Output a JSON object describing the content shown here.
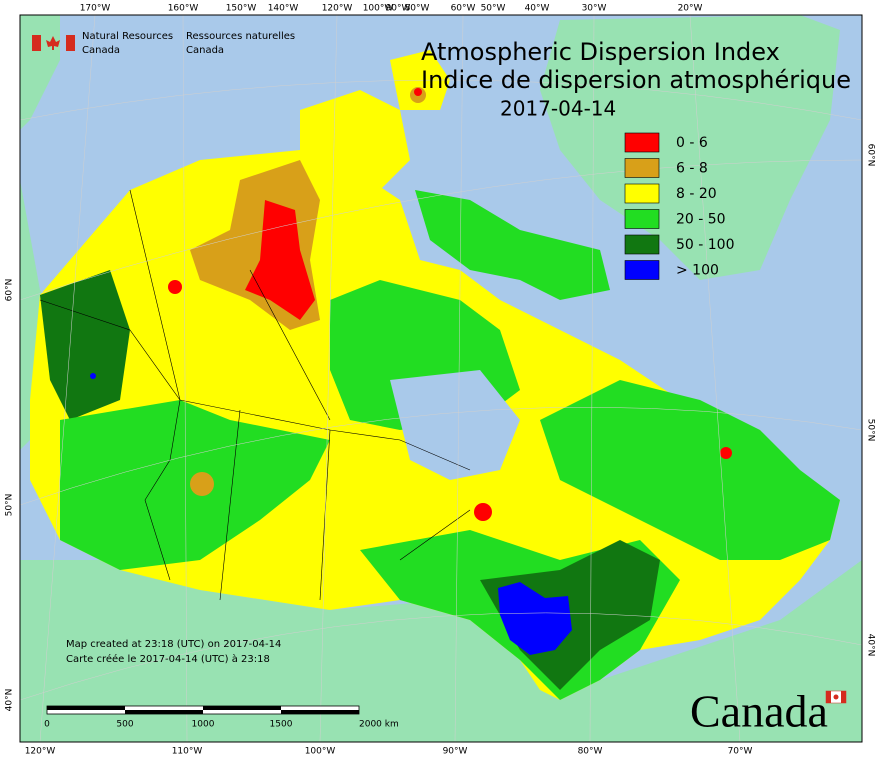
{
  "agency": {
    "en": "Natural Resources",
    "en2": "Canada",
    "fr": "Ressources naturelles",
    "fr2": "Canada"
  },
  "title": {
    "line1": "Atmospheric Dispersion Index",
    "line2": "Indice de dispersion atmosphérique",
    "date": "2017-04-14"
  },
  "legend": [
    {
      "label": "0 - 6",
      "color": "#ff0000"
    },
    {
      "label": "6 - 8",
      "color": "#d8a019"
    },
    {
      "label": "8 - 20",
      "color": "#ffff00"
    },
    {
      "label": "20 - 50",
      "color": "#22dd22"
    },
    {
      "label": "50 - 100",
      "color": "#117711"
    },
    {
      "label": "> 100",
      "color": "#0000ff"
    }
  ],
  "graticule": {
    "top": [
      "170°W",
      "160°W",
      "150°W",
      "140°W",
      "120°W",
      "100°W",
      "90°W",
      "80°W",
      "60°W",
      "50°W",
      "40°W",
      "30°W",
      "20°W"
    ],
    "bottom": [
      "120°W",
      "110°W",
      "100°W",
      "90°W",
      "80°W",
      "70°W"
    ],
    "left": [
      "60°N",
      "50°N",
      "40°N"
    ],
    "right": [
      "60°N",
      "50°N",
      "40°N"
    ]
  },
  "credit": {
    "en": "Map created at 23:18 (UTC) on 2017-04-14",
    "fr": "Carte créée le 2017-04-14 (UTC) à 23:18"
  },
  "scale": [
    "0",
    "500",
    "1000",
    "1500",
    "2000 km"
  ],
  "wordmark": "Canada"
}
